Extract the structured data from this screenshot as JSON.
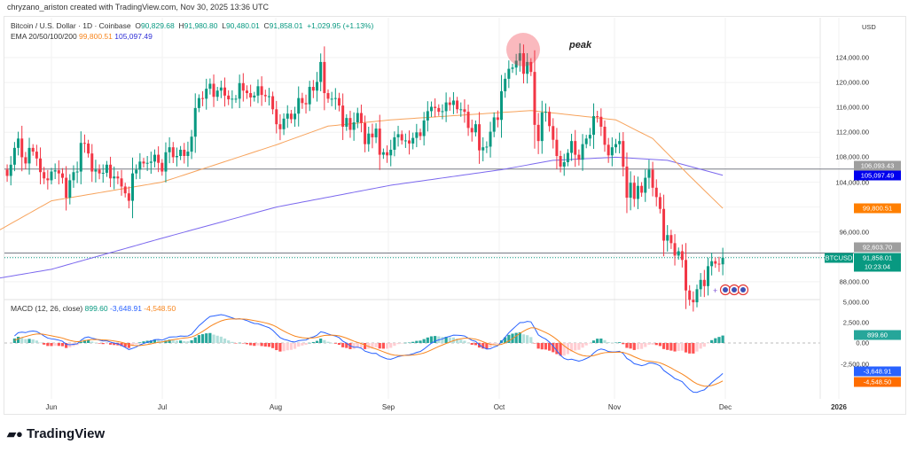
{
  "credit": "chryzano_ariston created with TradingView.com, Nov 30, 2025 13:36 UTC",
  "legend": {
    "symbol": "Bitcoin / U.S. Dollar · 1D · Coinbase",
    "o_label": "O",
    "o": "90,829.68",
    "h_label": "H",
    "h": "91,980.80",
    "l_label": "L",
    "l": "90,480.01",
    "c_label": "C",
    "c": "91,858.01",
    "change": "+1,029.95 (+1.13%)",
    "ema_label": "EMA 20/50/100/200",
    "ema50": "99,800.51",
    "ema200": "105,097.49",
    "macd_label": "MACD (12, 26, close)",
    "macd_hist": "899.60",
    "macd_line": "-3,648.91",
    "macd_signal": "-4,548.50"
  },
  "axis": {
    "currency": "USD",
    "price_ticks": [
      "124,000.00",
      "120,000.00",
      "116,000.00",
      "112,000.00",
      "108,000.00",
      "104,000.00",
      "96,000.00",
      "88,000.00"
    ],
    "macd_ticks": [
      "5,000.00",
      "2,500.00",
      "0.00",
      "-2,500.00"
    ],
    "months": [
      "Jun",
      "Jul",
      "Aug",
      "Sep",
      "Oct",
      "Nov",
      "Dec",
      "2026"
    ]
  },
  "tags": {
    "level_high": "106,093.43",
    "level_low": "92,603.70",
    "ticker": "BTCUSD",
    "last_price": "91,858.01",
    "countdown": "10:23:04"
  },
  "annotation": "peak",
  "logo": "TradingView",
  "colors": {
    "up": "#089981",
    "down": "#f23645",
    "ema50": "#f7a35c",
    "ema200": "#7b68ee",
    "macd": "#2962ff",
    "signal": "#f7851d"
  },
  "chart_data": {
    "type": "candlestick",
    "start_date": "2025-05-17",
    "interval": "1D",
    "units": "USD",
    "closes": [
      103500,
      104000,
      106000,
      105000,
      106800,
      109500,
      111000,
      108000,
      107000,
      109500,
      108900,
      107800,
      105600,
      104600,
      104300,
      105700,
      105900,
      105400,
      104700,
      101500,
      104300,
      105600,
      105700,
      110300,
      110200,
      108600,
      105700,
      106000,
      105400,
      105500,
      106800,
      104600,
      104900,
      104600,
      103300,
      102200,
      101000,
      105400,
      106000,
      107300,
      107000,
      107100,
      107300,
      108400,
      107100,
      105700,
      108800,
      109600,
      108000,
      108200,
      109200,
      108200,
      108900,
      111300,
      115900,
      117500,
      117400,
      119000,
      119800,
      117700,
      118700,
      119200,
      117900,
      117300,
      117400,
      117400,
      119900,
      118700,
      118300,
      117600,
      117900,
      119400,
      118000,
      117800,
      117800,
      115700,
      113300,
      112500,
      114200,
      115000,
      114100,
      115000,
      117500,
      116700,
      116500,
      119300,
      118700,
      120100,
      123300,
      118300,
      117400,
      117400,
      117500,
      116300,
      112900,
      114300,
      112400,
      113600,
      115100,
      113500,
      110100,
      111800,
      111200,
      112600,
      108400,
      108800,
      108300,
      109200,
      111200,
      111700,
      110700,
      110700,
      110200,
      111100,
      112000,
      111400,
      113900,
      115400,
      116100,
      115900,
      115300,
      115400,
      116800,
      116400,
      117100,
      115700,
      115700,
      115300,
      112700,
      112000,
      113300,
      109100,
      109600,
      109700,
      112100,
      114400,
      114000,
      118600,
      120600,
      122200,
      122400,
      123500,
      124700,
      121400,
      123300,
      121700,
      113200,
      110600,
      115200,
      115300,
      113000,
      110800,
      108200,
      106500,
      107200,
      108700,
      110600,
      108400,
      107600,
      110100,
      111000,
      111600,
      114600,
      114500,
      112900,
      110000,
      108300,
      109600,
      110100,
      110600,
      106500,
      101500,
      103900,
      101300,
      103400,
      102300,
      104700,
      106000,
      103100,
      101600,
      99700,
      94600,
      95500,
      94200,
      92200,
      92900,
      91500,
      86600,
      85100,
      84700,
      86800,
      88300,
      87300,
      90500,
      91300,
      90900,
      90800,
      91858
    ],
    "ema50_points": [
      [
        0,
        96000
      ],
      [
        15,
        101000
      ],
      [
        45,
        104000
      ],
      [
        76,
        110000
      ],
      [
        90,
        113000
      ],
      [
        107,
        114000
      ],
      [
        145,
        115500
      ],
      [
        168,
        114000
      ],
      [
        178,
        111000
      ],
      [
        188,
        105000
      ],
      [
        197,
        99800
      ]
    ],
    "ema200_points": [
      [
        0,
        88500
      ],
      [
        15,
        90000
      ],
      [
        45,
        95000
      ],
      [
        76,
        100000
      ],
      [
        107,
        103500
      ],
      [
        137,
        106000
      ],
      [
        151,
        107500
      ],
      [
        168,
        108000
      ],
      [
        182,
        107500
      ],
      [
        197,
        105097
      ]
    ],
    "levels": [
      106093.43,
      92603.7
    ],
    "price_range": [
      86000,
      126000
    ],
    "macd_range": [
      -6000,
      5000
    ],
    "grid": true
  }
}
